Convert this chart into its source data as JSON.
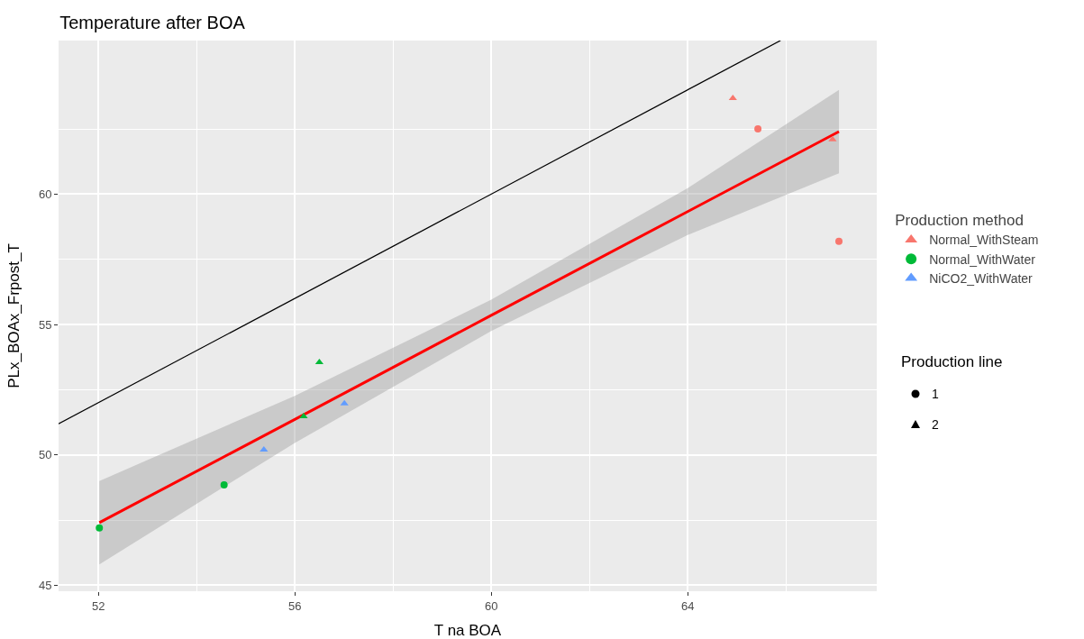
{
  "chart_data": {
    "type": "scatter",
    "title": "Temperature after BOA",
    "xlabel": "T na BOA",
    "ylabel": "PLx_BOAx_Frpost_T",
    "legend_title": [
      "Production method",
      "Production line"
    ],
    "xlim": [
      51.19,
      67.85
    ],
    "ylim": [
      44.77,
      65.89
    ],
    "xticks": [
      52,
      {
        "value": 54,
        "label": null
      },
      56,
      {
        "value": 58,
        "label": null
      },
      60,
      {
        "value": 62,
        "label": null
      },
      64,
      {
        "value": 66,
        "label": null
      }
    ],
    "yticks": [
      45,
      {
        "value": 47.5,
        "label": null
      },
      50,
      {
        "value": 52.5,
        "label": null
      },
      55,
      {
        "value": 57.5,
        "label": null
      },
      60,
      {
        "value": 62.5,
        "label": null
      }
    ],
    "grid": true,
    "legend": "right",
    "annotations": [
      "1",
      "2"
    ],
    "series": [
      {
        "type": "line",
        "color": "#000000",
        "x": [
          51.19,
          65.89
        ],
        "values": [
          51.19,
          65.89
        ]
      },
      {
        "type": "line",
        "color": "#ff0000",
        "x": [
          52.02,
          56,
          60,
          64,
          67.08
        ],
        "values": [
          47.4,
          51.36,
          55.35,
          59.33,
          62.4
        ],
        "lower": [
          45.8,
          50.46,
          54.75,
          58.43,
          60.8
        ],
        "upper": [
          49.0,
          52.26,
          55.95,
          60.23,
          64.0
        ]
      },
      {
        "name": "Normal_WithSteam",
        "color": "#f8766d",
        "x": [
          64.92,
          65.43,
          66.95,
          67.08
        ],
        "values": [
          63.68,
          62.5,
          62.1,
          58.19
        ],
        "marker": [
          "triangle",
          "circle",
          "triangle",
          "circle"
        ]
      },
      {
        "name": "Normal_WithWater",
        "color": "#00ba38",
        "x": [
          52.02,
          54.56,
          56.5,
          56.18
        ],
        "values": [
          47.2,
          48.85,
          53.55,
          51.48
        ],
        "marker": [
          "circle",
          "circle",
          "triangle",
          "triangle"
        ]
      },
      {
        "name": "NiCO2_WithWater",
        "color": "#619cff",
        "x": [
          55.37,
          57.01
        ],
        "values": [
          50.2,
          51.97
        ],
        "marker": [
          "triangle",
          "triangle"
        ]
      }
    ]
  }
}
